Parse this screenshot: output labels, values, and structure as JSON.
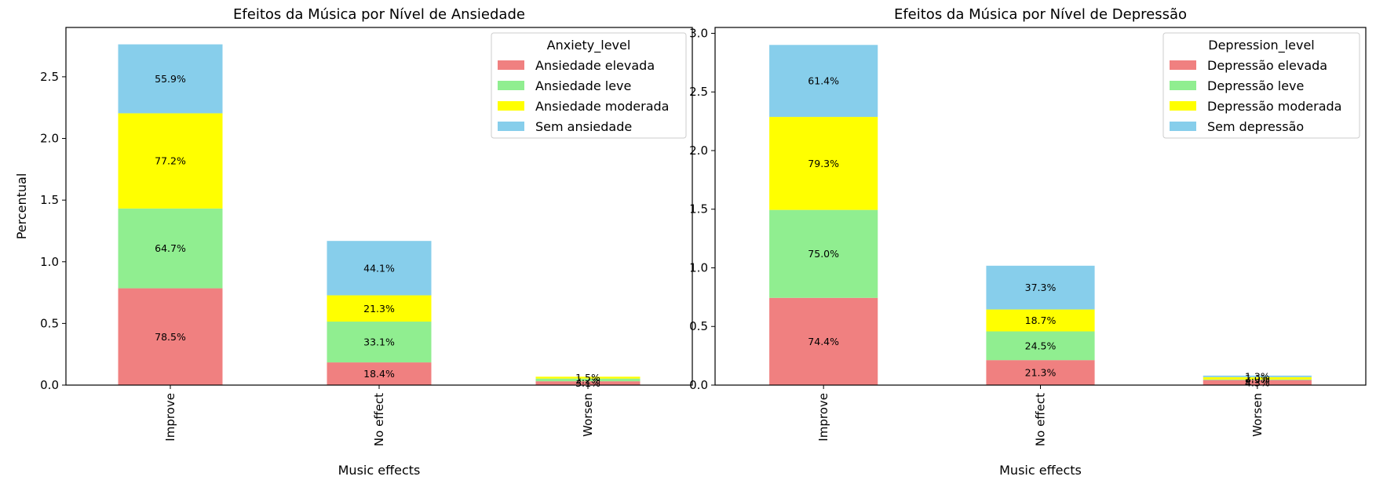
{
  "chart_data": [
    {
      "type": "bar",
      "stacked": true,
      "title": "Efeitos da Música por Nível de Ansiedade",
      "xlabel": "Music effects",
      "ylabel": "Percentual",
      "categories": [
        "Improve",
        "No effect",
        "Worsen"
      ],
      "ylim": [
        0,
        2.9
      ],
      "yticks": [
        0.0,
        0.5,
        1.0,
        1.5,
        2.0,
        2.5
      ],
      "ytick_labels": [
        "0.0",
        "0.5",
        "1.0",
        "1.5",
        "2.0",
        "2.5"
      ],
      "legend_title": "Anxiety_level",
      "legend_position": "top-right",
      "grid": false,
      "series": [
        {
          "name": "Ansiedade elevada",
          "color": "#f08080",
          "values": [
            0.785,
            0.184,
            0.031
          ],
          "labels": [
            "78.5%",
            "18.4%",
            "3.1%"
          ]
        },
        {
          "name": "Ansiedade leve",
          "color": "#90ee90",
          "values": [
            0.647,
            0.331,
            0.022
          ],
          "labels": [
            "64.7%",
            "33.1%",
            "2.2%"
          ]
        },
        {
          "name": "Ansiedade moderada",
          "color": "#ffff00",
          "values": [
            0.772,
            0.213,
            0.015
          ],
          "labels": [
            "77.2%",
            "21.3%",
            "1.5%"
          ]
        },
        {
          "name": "Sem ansiedade",
          "color": "#87ceeb",
          "values": [
            0.559,
            0.441,
            0.0
          ],
          "labels": [
            "55.9%",
            "44.1%",
            ""
          ]
        }
      ]
    },
    {
      "type": "bar",
      "stacked": true,
      "title": "Efeitos da Música por Nível de Depressão",
      "xlabel": "Music effects",
      "ylabel": "",
      "categories": [
        "Improve",
        "No effect",
        "Worsen"
      ],
      "ylim": [
        0,
        3.05
      ],
      "yticks": [
        0.0,
        0.5,
        1.0,
        1.5,
        2.0,
        2.5,
        3.0
      ],
      "ytick_labels": [
        "0.0",
        "0.5",
        "1.0",
        "1.5",
        "2.0",
        "2.5",
        "3.0"
      ],
      "legend_title": "Depression_level",
      "legend_position": "top-right",
      "grid": false,
      "series": [
        {
          "name": "Depressão elevada",
          "color": "#f08080",
          "values": [
            0.744,
            0.213,
            0.043
          ],
          "labels": [
            "74.4%",
            "21.3%",
            "4.3%"
          ]
        },
        {
          "name": "Depressão leve",
          "color": "#90ee90",
          "values": [
            0.75,
            0.245,
            0.005
          ],
          "labels": [
            "75.0%",
            "24.5%",
            "0.5%"
          ]
        },
        {
          "name": "Depressão moderada",
          "color": "#ffff00",
          "values": [
            0.793,
            0.187,
            0.02
          ],
          "labels": [
            "79.3%",
            "18.7%",
            "2.0%"
          ]
        },
        {
          "name": "Sem depressão",
          "color": "#87ceeb",
          "values": [
            0.614,
            0.373,
            0.013
          ],
          "labels": [
            "61.4%",
            "37.3%",
            "1.3%"
          ]
        }
      ]
    }
  ]
}
